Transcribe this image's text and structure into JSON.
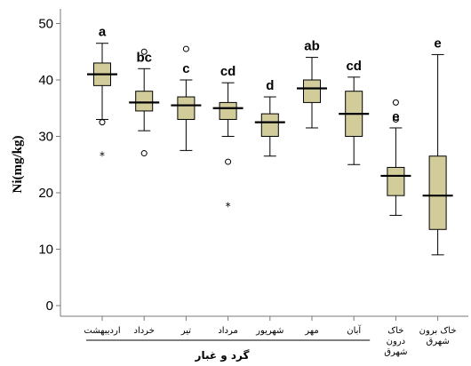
{
  "chart_data": {
    "type": "box",
    "ylabel": "Ni(mg/kg)",
    "xlabel": "گرد و غبار",
    "ylim": [
      -2,
      52
    ],
    "yticks": [
      0,
      10,
      20,
      30,
      40,
      50
    ],
    "grid": false,
    "colors": {
      "box_fill": "#d2cc9a",
      "line": "#000000",
      "axis": "#7a7a7a"
    },
    "categories": [
      {
        "label": [
          "اردیبهشت"
        ],
        "group": "a",
        "whisker_low": 33,
        "q1": 39,
        "median": 41,
        "q3": 43,
        "whisker_high": 46.5,
        "outliers": [
          32.5
        ],
        "extremes": [
          27
        ]
      },
      {
        "label": [
          "خرداد"
        ],
        "group": "bc",
        "whisker_low": 31,
        "q1": 34.5,
        "median": 36,
        "q3": 38,
        "whisker_high": 42,
        "outliers": [
          45,
          27
        ],
        "extremes": []
      },
      {
        "label": [
          "تیر"
        ],
        "group": "c",
        "whisker_low": 27.5,
        "q1": 33,
        "median": 35.5,
        "q3": 37,
        "whisker_high": 40,
        "outliers": [
          45.5
        ],
        "extremes": []
      },
      {
        "label": [
          "مرداد"
        ],
        "group": "cd",
        "whisker_low": 30,
        "q1": 33,
        "median": 35,
        "q3": 36,
        "whisker_high": 39.5,
        "outliers": [
          25.5
        ],
        "extremes": [
          18
        ]
      },
      {
        "label": [
          "شهریور"
        ],
        "group": "d",
        "whisker_low": 26.5,
        "q1": 30,
        "median": 32.5,
        "q3": 34,
        "whisker_high": 37,
        "outliers": [],
        "extremes": []
      },
      {
        "label": [
          "مهر"
        ],
        "group": "ab",
        "whisker_low": 31.5,
        "q1": 36,
        "median": 38.5,
        "q3": 40,
        "whisker_high": 44,
        "outliers": [],
        "extremes": []
      },
      {
        "label": [
          "آبان"
        ],
        "group": "cd",
        "whisker_low": 25,
        "q1": 30,
        "median": 34,
        "q3": 38,
        "whisker_high": 40.5,
        "outliers": [],
        "extremes": []
      },
      {
        "label": [
          "خاک",
          "درون",
          "شهرق"
        ],
        "group": "e",
        "whisker_low": 16,
        "q1": 19.5,
        "median": 23,
        "q3": 24.5,
        "whisker_high": 31.5,
        "outliers": [
          36,
          33
        ],
        "extremes": []
      },
      {
        "label": [
          "خاک برون",
          "شهرق"
        ],
        "group": "e",
        "whisker_low": 9,
        "q1": 13.5,
        "median": 19.5,
        "q3": 26.5,
        "whisker_high": 44.5,
        "outliers": [],
        "extremes": []
      }
    ]
  }
}
